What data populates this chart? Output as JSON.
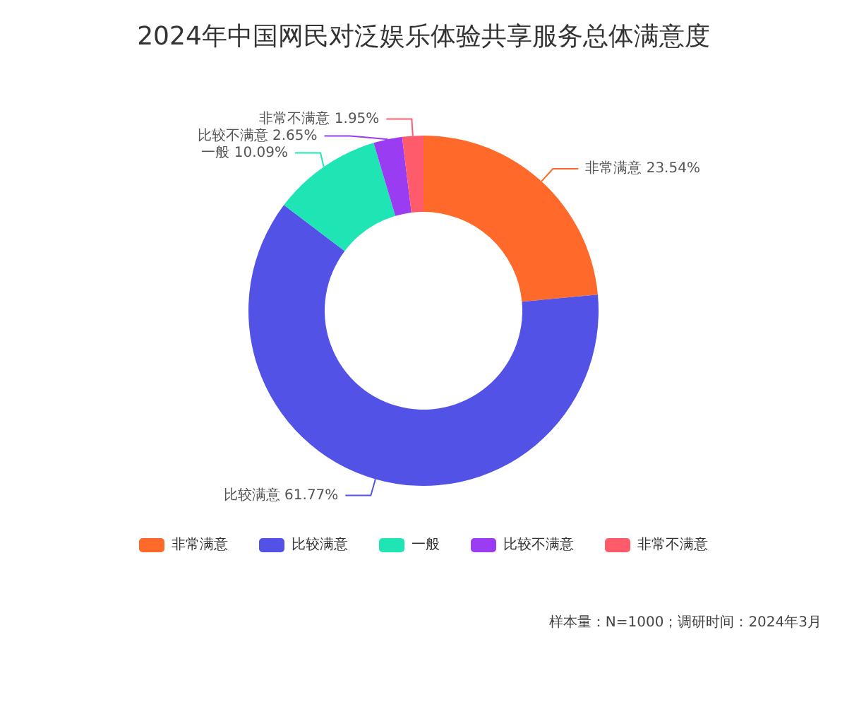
{
  "chart_data": {
    "type": "donut",
    "title": "2024年中国网民对泛娱乐体验共享服务总体满意度",
    "categories": [
      "非常满意",
      "比较满意",
      "一般",
      "比较不满意",
      "非常不满意"
    ],
    "values": [
      23.54,
      61.77,
      10.09,
      2.65,
      1.95
    ],
    "value_labels": [
      "23.54%",
      "61.77%",
      "10.09%",
      "2.65%",
      "1.95%"
    ],
    "colors": [
      "#ff6a2b",
      "#5352e6",
      "#1fe5b4",
      "#9a3cf2",
      "#ff5b6b"
    ],
    "legend": "bottom",
    "annotations": [
      "样本量：N=1000；调研时间：2024年3月"
    ]
  }
}
